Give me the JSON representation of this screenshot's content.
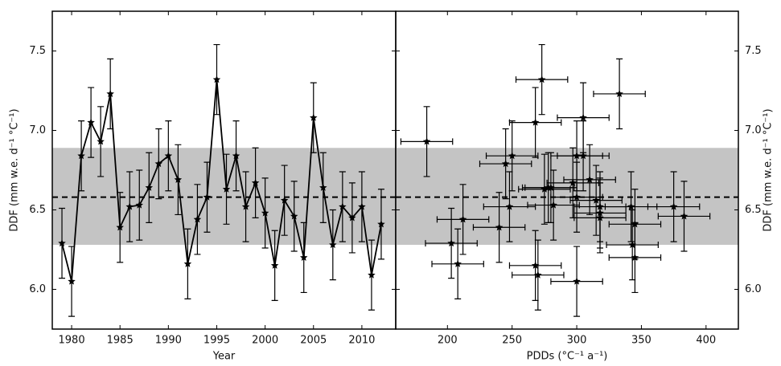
{
  "chart_data": [
    {
      "type": "line",
      "x_label": "Year",
      "y_label": "DDF (mm w.e. d⁻¹ °C⁻¹)",
      "xlim": [
        1978,
        2013.5
      ],
      "xticks": [
        1980,
        1985,
        1990,
        1995,
        2000,
        2005,
        2010
      ],
      "ylim": [
        5.75,
        7.75
      ],
      "yticks": [
        {
          "value": 6.0,
          "label": "6.0"
        },
        6.5,
        {
          "value": 7.0,
          "label": "7.0"
        },
        7.5
      ],
      "mean": 6.58,
      "band": [
        6.28,
        6.89
      ],
      "color": "#000000",
      "x": [
        1979,
        1980,
        1981,
        1982,
        1983,
        1984,
        1985,
        1986,
        1987,
        1988,
        1989,
        1990,
        1991,
        1992,
        1993,
        1994,
        1995,
        1996,
        1997,
        1998,
        1999,
        2000,
        2001,
        2002,
        2003,
        2004,
        2005,
        2006,
        2007,
        2008,
        2009,
        2010,
        2011,
        2012
      ],
      "values": [
        6.29,
        6.05,
        6.84,
        7.05,
        6.93,
        7.23,
        6.39,
        6.52,
        6.53,
        6.64,
        6.79,
        6.84,
        6.69,
        6.16,
        6.44,
        6.58,
        7.32,
        6.63,
        6.84,
        6.52,
        6.67,
        6.48,
        6.15,
        6.56,
        6.46,
        6.2,
        7.08,
        6.64,
        6.28,
        6.52,
        6.45,
        6.52,
        6.09,
        6.41
      ],
      "errors": [
        0.22,
        0.22,
        0.22,
        0.22,
        0.22,
        0.22,
        0.22,
        0.22,
        0.22,
        0.22,
        0.22,
        0.22,
        0.22,
        0.22,
        0.22,
        0.22,
        0.22,
        0.22,
        0.22,
        0.22,
        0.22,
        0.22,
        0.22,
        0.22,
        0.22,
        0.22,
        0.22,
        0.22,
        0.22,
        0.22,
        0.22,
        0.22,
        0.22,
        0.22
      ]
    },
    {
      "type": "scatter",
      "x_label": "PDDs (°C⁻¹ a⁻¹)",
      "y_label": "DDF (mm w.e. d⁻¹ °C⁻¹)",
      "xlim": [
        160,
        425
      ],
      "xticks": [
        200,
        250,
        300,
        350,
        400
      ],
      "ylim": [
        5.75,
        7.75
      ],
      "yticks": [
        {
          "value": 6.0,
          "label": "6.0"
        },
        6.5,
        {
          "value": 7.0,
          "label": "7.0"
        },
        7.5
      ],
      "mean": 6.58,
      "band": [
        6.28,
        6.89
      ],
      "color": "#000000",
      "x": [
        203,
        300,
        250,
        268,
        184,
        333,
        240,
        248,
        282,
        280,
        245,
        300,
        310,
        208,
        212,
        300,
        273,
        275,
        305,
        342,
        297,
        318,
        268,
        315,
        383,
        345,
        305,
        278,
        343,
        318,
        318,
        375,
        270,
        345
      ],
      "x_errors": [
        20,
        20,
        20,
        20,
        20,
        20,
        20,
        20,
        20,
        20,
        20,
        20,
        20,
        20,
        20,
        20,
        20,
        20,
        20,
        20,
        20,
        20,
        20,
        20,
        20,
        20,
        20,
        20,
        20,
        20,
        20,
        20,
        20,
        20
      ],
      "values": [
        6.29,
        6.05,
        6.84,
        7.05,
        6.93,
        7.23,
        6.39,
        6.52,
        6.53,
        6.64,
        6.79,
        6.84,
        6.69,
        6.16,
        6.44,
        6.58,
        7.32,
        6.63,
        6.84,
        6.52,
        6.67,
        6.48,
        6.15,
        6.56,
        6.46,
        6.2,
        7.08,
        6.64,
        6.28,
        6.52,
        6.45,
        6.52,
        6.09,
        6.41
      ],
      "errors": [
        0.22,
        0.22,
        0.22,
        0.22,
        0.22,
        0.22,
        0.22,
        0.22,
        0.22,
        0.22,
        0.22,
        0.22,
        0.22,
        0.22,
        0.22,
        0.22,
        0.22,
        0.22,
        0.22,
        0.22,
        0.22,
        0.22,
        0.22,
        0.22,
        0.22,
        0.22,
        0.22,
        0.22,
        0.22,
        0.22,
        0.22,
        0.22,
        0.22,
        0.22
      ]
    }
  ]
}
